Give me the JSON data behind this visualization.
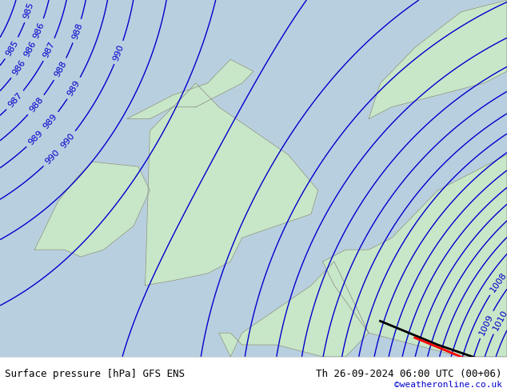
{
  "title_left": "Surface pressure [hPa] GFS ENS",
  "title_right": "Th 26-09-2024 06:00 UTC (00+06)",
  "credit": "©weatheronline.co.uk",
  "bg_color": "#c8e6c8",
  "land_color": "#c8e6c8",
  "sea_color": "#b0c8e8",
  "isobar_color": "#0000cc",
  "isobar_linewidth": 1.0,
  "label_color": "#0000cc",
  "label_fontsize": 8,
  "pressure_min": 984,
  "pressure_max": 1012,
  "pressure_step": 1,
  "footer_bg": "#ffffff",
  "footer_text_color": "#000000",
  "credit_color": "#0000cc"
}
